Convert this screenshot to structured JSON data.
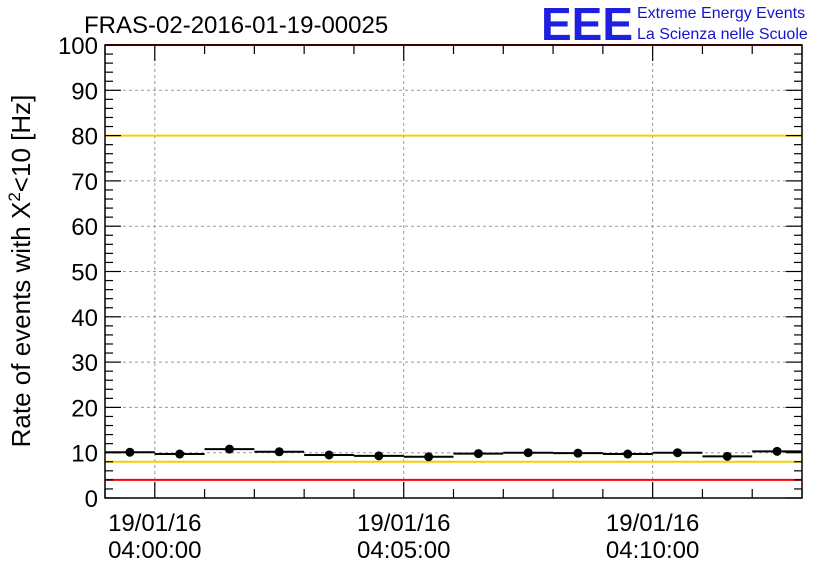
{
  "header": {
    "title": "FRAS-02-2016-01-19-00025",
    "brand_logo": "EEE",
    "brand_line1": "Extreme Energy Events",
    "brand_line2": "La Scienza nelle Scuole"
  },
  "colors": {
    "data": "#000000",
    "limit_red": "#ff0000",
    "limit_yellow": "#f0d000",
    "grid": "#9a9a9a",
    "brand": "#1f1fe0"
  },
  "chart_data": {
    "type": "scatter",
    "title": "FRAS-02-2016-01-19-00025",
    "xlabel": "",
    "ylabel_prefix": "Rate of events with X",
    "ylabel_sup": "2",
    "ylabel_suffix": "<10 [Hz]",
    "x_unit": "minutes after 19/01/16 04:00:00",
    "xlim": [
      -1,
      13
    ],
    "ylim": [
      0,
      100
    ],
    "grid": true,
    "y_ticks": [
      "0",
      "10",
      "20",
      "30",
      "40",
      "50",
      "60",
      "70",
      "80",
      "90",
      "100"
    ],
    "x_ticks": [
      {
        "x": 0,
        "date": "19/01/16",
        "time": "04:00:00"
      },
      {
        "x": 5,
        "date": "19/01/16",
        "time": "04:05:00"
      },
      {
        "x": 10,
        "date": "19/01/16",
        "time": "04:10:00"
      }
    ],
    "series": [
      {
        "x": [
          -0.5,
          0.5,
          1.5,
          2.5,
          3.5,
          4.5,
          5.5,
          6.5,
          7.5,
          8.5,
          9.5,
          10.5,
          11.5,
          12.5
        ],
        "y": [
          10.1,
          9.7,
          10.8,
          10.2,
          9.5,
          9.3,
          9.1,
          9.8,
          10.0,
          9.9,
          9.7,
          10.0,
          9.2,
          10.3
        ],
        "x_half_width": 0.5
      }
    ],
    "reference_lines": [
      {
        "y": 100,
        "color": "#ff0000"
      },
      {
        "y": 80,
        "color": "#f0d000"
      },
      {
        "y": 8,
        "color": "#f0d000"
      },
      {
        "y": 4,
        "color": "#ff0000"
      }
    ]
  }
}
